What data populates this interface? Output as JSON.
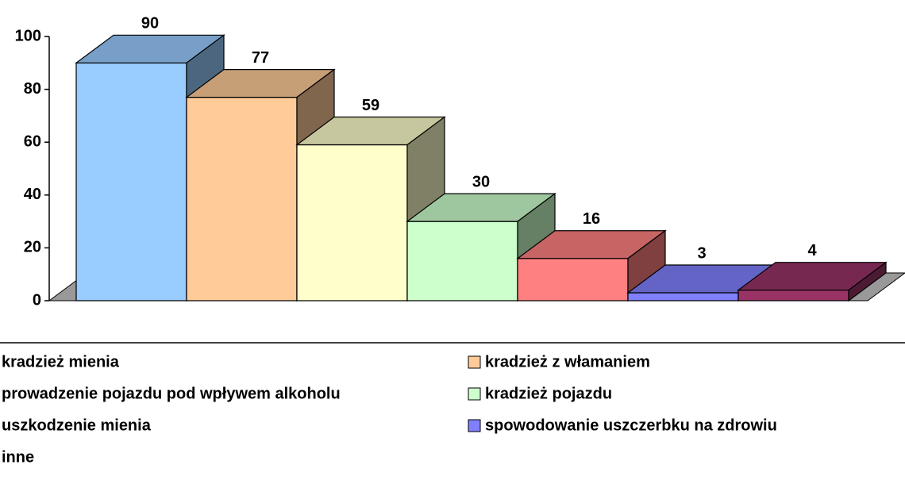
{
  "chart_data": {
    "type": "bar3d",
    "categories": [
      "kradzież mienia",
      "kradzież z włamaniem",
      "prowadzenie pojazdu pod wpływem alkoholu",
      "kradzież pojazdu",
      "uszkodzenie mienia",
      "spowodowanie uszczerbku na zdrowiu",
      "inne"
    ],
    "values": [
      90,
      77,
      59,
      30,
      16,
      3,
      4
    ],
    "colors": [
      "#99ccff",
      "#ffcc99",
      "#ffffcc",
      "#ccffcc",
      "#ff8080",
      "#8080ff",
      "#993366"
    ],
    "ylim": [
      0,
      100
    ],
    "yticks": [
      0,
      20,
      40,
      60,
      80,
      100
    ]
  }
}
